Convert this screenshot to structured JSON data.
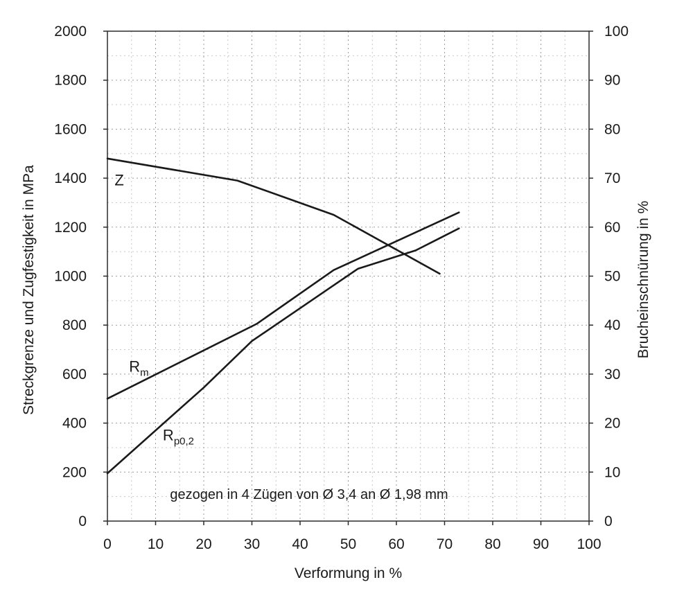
{
  "chart_data": {
    "type": "line",
    "title": "",
    "xlabel": "Verformung in %",
    "ylabel": "Streckgrenze und Zugfestigkeit in MPa",
    "ylabel_right": "Brucheinschnürung in %",
    "xlim": [
      0,
      100
    ],
    "ylim": [
      0,
      2000
    ],
    "ylim_right": [
      0,
      100
    ],
    "x_ticks": [
      0,
      10,
      20,
      30,
      40,
      50,
      60,
      70,
      80,
      90,
      100
    ],
    "y_ticks": [
      0,
      200,
      400,
      600,
      800,
      1000,
      1200,
      1400,
      1600,
      1800,
      2000
    ],
    "y_ticks_right": [
      0,
      10,
      20,
      30,
      40,
      50,
      60,
      70,
      80,
      90,
      100
    ],
    "grid": true,
    "series": [
      {
        "name": "Z",
        "name_sub": "",
        "axis": "right",
        "color": "#1a1a1a",
        "x": [
          0,
          27,
          47,
          69
        ],
        "y": [
          74,
          69.5,
          62.5,
          50.5
        ]
      },
      {
        "name": "R",
        "name_sub": "m",
        "axis": "left",
        "color": "#1a1a1a",
        "x": [
          0,
          31,
          47,
          73
        ],
        "y": [
          500,
          805,
          1025,
          1260
        ]
      },
      {
        "name": "R",
        "name_sub": "p0,2",
        "axis": "left",
        "color": "#1a1a1a",
        "x": [
          0,
          20,
          30,
          52,
          64,
          73
        ],
        "y": [
          195,
          545,
          735,
          1030,
          1105,
          1195
        ]
      }
    ],
    "series_label_anchor": [
      {
        "x": 1.5,
        "y": 1370
      },
      {
        "x": 4.5,
        "y": 610
      },
      {
        "x": 11.5,
        "y": 330
      }
    ],
    "annotation": "gezogen in 4 Zügen von Ø 3,4 an Ø 1,98 mm",
    "annotation_anchor": {
      "x": 13,
      "y": 90
    }
  }
}
